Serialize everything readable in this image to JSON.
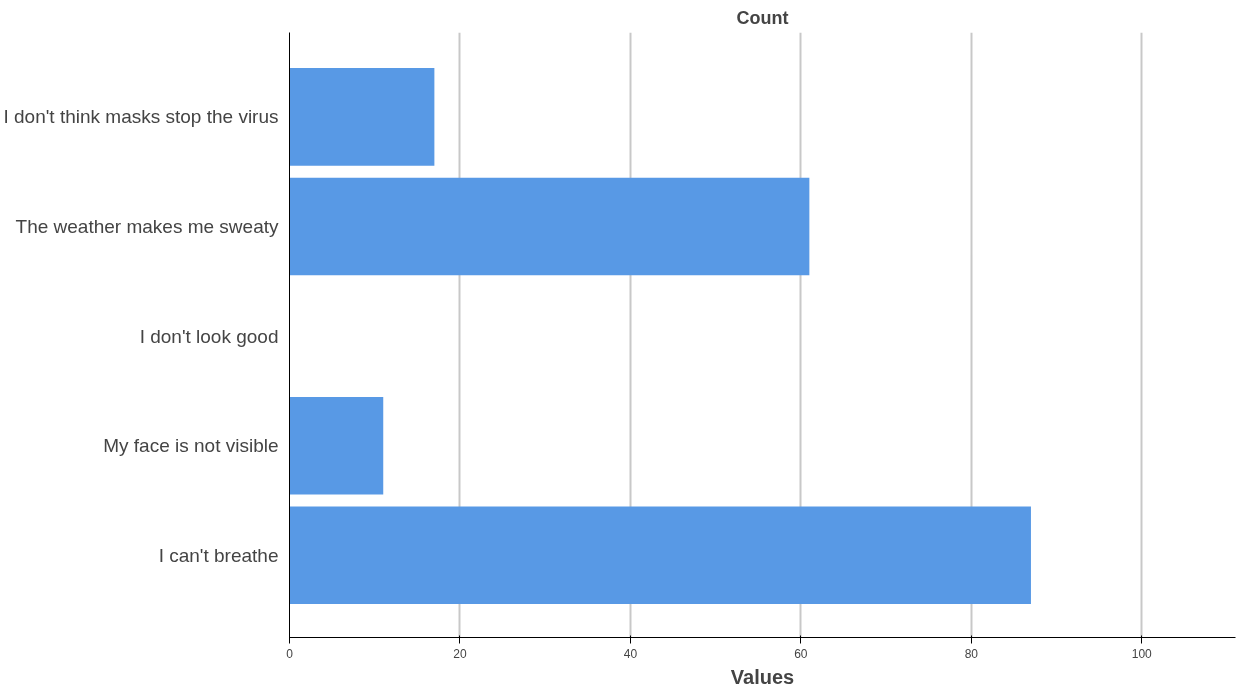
{
  "chart_data": {
    "type": "bar",
    "orientation": "horizontal",
    "title": "Count",
    "xlabel": "Values",
    "categories": [
      "I don't think masks stop the virus",
      "The weather makes me sweaty",
      "I don't look good",
      "My face is not visible",
      "I can't breathe"
    ],
    "values": [
      17,
      61,
      0,
      11,
      87
    ],
    "color": "#5899e5",
    "xlim": [
      0,
      111
    ],
    "xticks": [
      0,
      20,
      40,
      60,
      80,
      100
    ],
    "grid": "x"
  }
}
